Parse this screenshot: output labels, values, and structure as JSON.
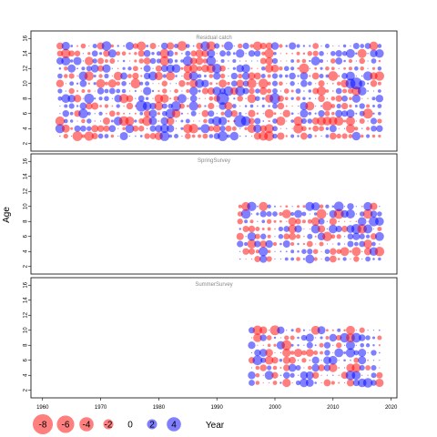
{
  "chart_data": [
    {
      "type": "scatter",
      "title": "Residual catch",
      "xlim": [
        1958,
        2021
      ],
      "ylim": [
        1,
        17
      ],
      "years": [
        1963,
        2018
      ],
      "ages": [
        3,
        15
      ],
      "note": "bubble residual plot: ages 3-15 for years 1963-2018; red = negative residual, blue = positive residual, bubble area ~ |residual|"
    },
    {
      "type": "scatter",
      "title": "SpringSurvey",
      "xlim": [
        1958,
        2021
      ],
      "ylim": [
        1,
        17
      ],
      "years": [
        1994,
        2018
      ],
      "ages": [
        3,
        10
      ]
    },
    {
      "type": "scatter",
      "title": "SummerSurvey",
      "xlim": [
        1958,
        2021
      ],
      "ylim": [
        1,
        17
      ],
      "years": [
        1996,
        2018
      ],
      "ages": [
        3,
        10
      ]
    }
  ],
  "axes": {
    "ylabel": "Age",
    "xlabel": "Year",
    "x_ticks": [
      1960,
      1970,
      1980,
      1990,
      2000,
      2010,
      2020
    ],
    "y_ticks": [
      2,
      4,
      6,
      8,
      10,
      12,
      14,
      16
    ]
  },
  "legend": {
    "values": [
      -8,
      -6,
      -4,
      -2,
      0,
      2,
      4
    ],
    "neg_color": "#ff0000",
    "pos_color": "#0000ff"
  },
  "colors": {
    "negative_fill": "rgba(255,0,0,0.5)",
    "positive_fill": "rgba(0,0,255,0.5)",
    "title_text": "#888888"
  }
}
